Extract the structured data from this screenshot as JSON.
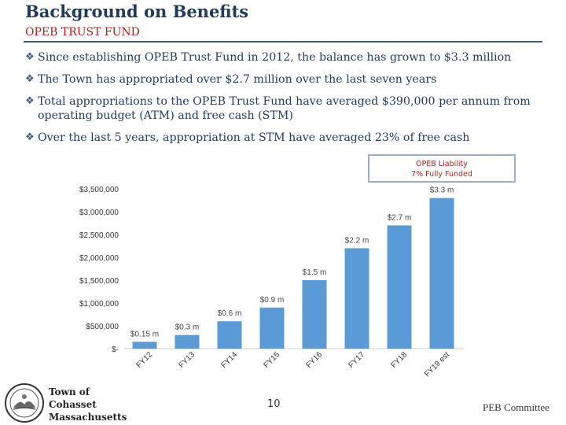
{
  "header": {
    "title": "Background on Benefits",
    "subtitle": "OPEB TRUST FUND"
  },
  "bullets": [
    "Since establishing OPEB Trust Fund in 2012, the balance has grown to $3.3 million",
    "The Town has appropriated over $2.7 million over the last seven years",
    "Total appropriations to the OPEB Trust Fund have averaged $390,000 per annum from operating budget (ATM) and free cash (STM)",
    "Over the last 5 years, appropriation at STM have averaged 23% of free cash"
  ],
  "bullet_marker": "❖",
  "callout": {
    "line1": "OPEB Liability",
    "line2": "7% Fully Funded"
  },
  "chart_data": {
    "type": "bar",
    "categories": [
      "FY12",
      "FY13",
      "FY14",
      "FY15",
      "FY16",
      "FY17",
      "FY18",
      "FY19 est"
    ],
    "values": [
      150000,
      300000,
      600000,
      900000,
      1500000,
      2200000,
      2700000,
      3300000
    ],
    "data_labels": [
      "$0.15 m",
      "$0.3 m",
      "$0.6 m",
      "$0.9 m",
      "$1.5 m",
      "$2.2 m",
      "$2.7 m",
      "$3.3 m"
    ],
    "ylim": [
      0,
      3500000
    ],
    "y_ticks": [
      0,
      500000,
      1000000,
      1500000,
      2000000,
      2500000,
      3000000,
      3500000
    ],
    "y_tick_labels": [
      "$-",
      "$500,000",
      "$1,000,000",
      "$1,500,000",
      "$2,000,000",
      "$2,500,000",
      "$3,000,000",
      "$3,500,000"
    ],
    "title": "",
    "xlabel": "",
    "ylabel": "",
    "grid": false,
    "bar_color": "#5b9bd5"
  },
  "footer": {
    "town_line1": "Town of",
    "town_line2": "Cohasset",
    "town_line3": "Massachusetts",
    "page_number": "10",
    "right_text": "PEB Committee"
  },
  "colors": {
    "title": "#1f3a5a",
    "accent_red": "#b0211a",
    "bar": "#5b9bd5"
  }
}
